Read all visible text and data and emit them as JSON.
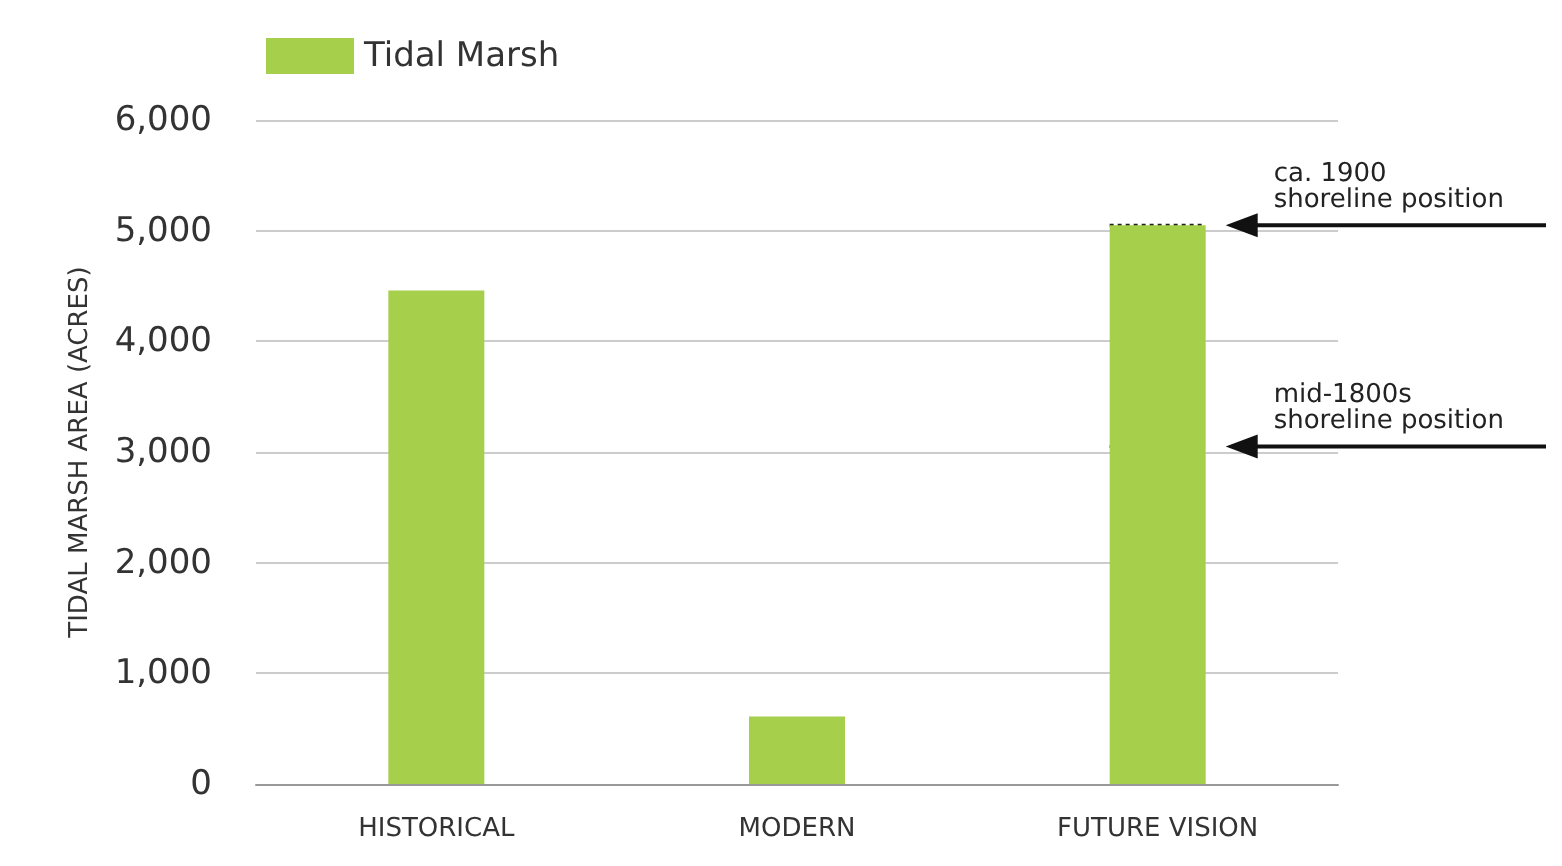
{
  "chart_data": {
    "type": "bar",
    "categories": [
      "HISTORICAL",
      "MODERN",
      "FUTURE VISION"
    ],
    "series": [
      {
        "name": "Tidal Marsh",
        "color": "#a6d04b",
        "values": [
          4460,
          610,
          5050
        ]
      }
    ],
    "ylabel": "TIDAL MARSH AREA (ACRES)",
    "ylim": [
      0,
      6000
    ],
    "yticks": [
      0,
      {
        "value": 1000,
        "label": "1,000"
      },
      {
        "value": 2000,
        "label": "2,000"
      },
      {
        "value": 3000,
        "label": "3,000"
      },
      {
        "value": 4000,
        "label": "4,000"
      },
      {
        "value": 5000,
        "label": "5,000"
      },
      {
        "value": 6000,
        "label": "6,000"
      }
    ],
    "grid": "y",
    "legend": "top left",
    "ref_lines": [
      {
        "axis": "y",
        "value": 5050,
        "label": "ca. 1900 shoreline position",
        "line_style": "dotted"
      },
      {
        "axis": "y",
        "value": 3050,
        "label": "mid-1800s shoreline position",
        "line_style": "dotted"
      }
    ]
  }
}
